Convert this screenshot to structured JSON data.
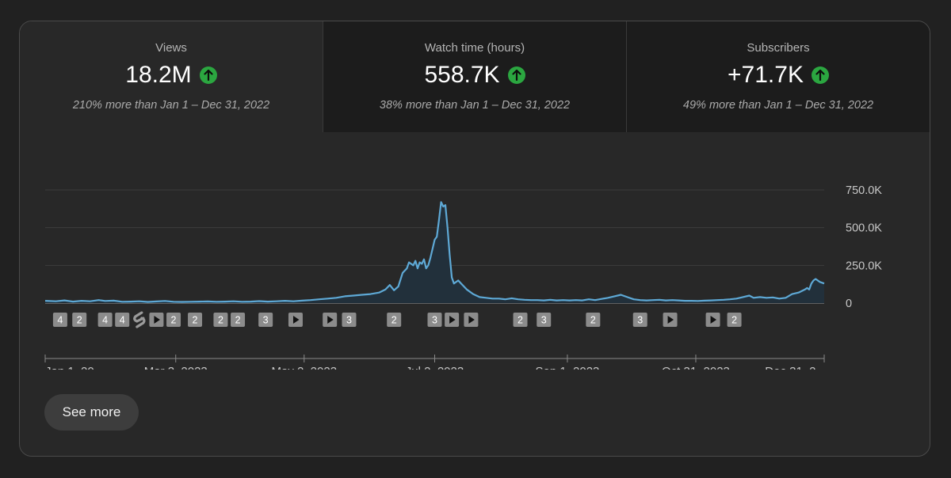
{
  "metrics": [
    {
      "label": "Views",
      "value": "18.2M",
      "compare": "210% more than Jan 1 – Dec 31, 2022"
    },
    {
      "label": "Watch time (hours)",
      "value": "558.7K",
      "compare": "38% more than Jan 1 – Dec 31, 2022"
    },
    {
      "label": "Subscribers",
      "value": "+71.7K",
      "compare": "49% more than Jan 1 – Dec 31, 2022"
    }
  ],
  "colors": {
    "line": "#5ea9d6",
    "area": "#22303b",
    "up": "#2ba640",
    "marker": "#8c8c8c"
  },
  "see_more_label": "See more",
  "chart_data": {
    "type": "area",
    "title": "Views",
    "ylim": [
      0,
      750000
    ],
    "y_ticks": [
      0,
      250000,
      500000,
      750000
    ],
    "y_tick_labels": [
      "0",
      "250.0K",
      "500.0K",
      "750.0K"
    ],
    "x_tick_labels": [
      "Jan 1, 20...",
      "Mar 3, 2023",
      "May 2, 2023",
      "Jul 2, 2023",
      "Sep 1, 2023",
      "Oct 31, 2023",
      "Dec 31, 2..."
    ],
    "x_tick_days": [
      0,
      61,
      121,
      182,
      244,
      304,
      364
    ],
    "x_max_day": 364,
    "series": [
      {
        "name": "Views",
        "points": [
          [
            0,
            15000
          ],
          [
            5,
            12000
          ],
          [
            9,
            18000
          ],
          [
            13,
            10000
          ],
          [
            17,
            15000
          ],
          [
            21,
            12000
          ],
          [
            25,
            20000
          ],
          [
            28,
            14000
          ],
          [
            32,
            16000
          ],
          [
            36,
            9000
          ],
          [
            40,
            10000
          ],
          [
            44,
            12000
          ],
          [
            48,
            8000
          ],
          [
            52,
            11000
          ],
          [
            56,
            14000
          ],
          [
            60,
            9000
          ],
          [
            64,
            8000
          ],
          [
            68,
            9000
          ],
          [
            72,
            10000
          ],
          [
            76,
            11000
          ],
          [
            80,
            9000
          ],
          [
            84,
            10000
          ],
          [
            88,
            12000
          ],
          [
            92,
            9000
          ],
          [
            96,
            10000
          ],
          [
            100,
            13000
          ],
          [
            104,
            10000
          ],
          [
            108,
            12000
          ],
          [
            112,
            15000
          ],
          [
            116,
            12000
          ],
          [
            120,
            16000
          ],
          [
            124,
            20000
          ],
          [
            128,
            25000
          ],
          [
            132,
            30000
          ],
          [
            136,
            35000
          ],
          [
            140,
            45000
          ],
          [
            144,
            50000
          ],
          [
            148,
            55000
          ],
          [
            152,
            60000
          ],
          [
            156,
            70000
          ],
          [
            159,
            90000
          ],
          [
            161,
            120000
          ],
          [
            163,
            85000
          ],
          [
            165,
            110000
          ],
          [
            167,
            200000
          ],
          [
            169,
            230000
          ],
          [
            170,
            270000
          ],
          [
            172,
            250000
          ],
          [
            173,
            280000
          ],
          [
            174,
            230000
          ],
          [
            175,
            270000
          ],
          [
            176,
            260000
          ],
          [
            177,
            290000
          ],
          [
            178,
            230000
          ],
          [
            179,
            250000
          ],
          [
            180,
            300000
          ],
          [
            181,
            360000
          ],
          [
            182,
            420000
          ],
          [
            183,
            440000
          ],
          [
            184,
            550000
          ],
          [
            185,
            670000
          ],
          [
            186,
            640000
          ],
          [
            187,
            650000
          ],
          [
            188,
            500000
          ],
          [
            189,
            320000
          ],
          [
            190,
            170000
          ],
          [
            191,
            130000
          ],
          [
            193,
            150000
          ],
          [
            195,
            120000
          ],
          [
            197,
            90000
          ],
          [
            200,
            60000
          ],
          [
            203,
            40000
          ],
          [
            206,
            35000
          ],
          [
            209,
            30000
          ],
          [
            212,
            30000
          ],
          [
            215,
            25000
          ],
          [
            218,
            32000
          ],
          [
            221,
            25000
          ],
          [
            224,
            22000
          ],
          [
            227,
            20000
          ],
          [
            230,
            20000
          ],
          [
            233,
            18000
          ],
          [
            236,
            22000
          ],
          [
            239,
            18000
          ],
          [
            242,
            20000
          ],
          [
            245,
            18000
          ],
          [
            248,
            20000
          ],
          [
            251,
            18000
          ],
          [
            254,
            25000
          ],
          [
            257,
            20000
          ],
          [
            260,
            28000
          ],
          [
            263,
            35000
          ],
          [
            266,
            45000
          ],
          [
            269,
            55000
          ],
          [
            272,
            40000
          ],
          [
            275,
            25000
          ],
          [
            278,
            20000
          ],
          [
            281,
            18000
          ],
          [
            284,
            20000
          ],
          [
            287,
            22000
          ],
          [
            290,
            18000
          ],
          [
            293,
            20000
          ],
          [
            296,
            18000
          ],
          [
            299,
            15000
          ],
          [
            302,
            15000
          ],
          [
            305,
            14000
          ],
          [
            308,
            16000
          ],
          [
            311,
            18000
          ],
          [
            314,
            20000
          ],
          [
            317,
            22000
          ],
          [
            320,
            25000
          ],
          [
            323,
            30000
          ],
          [
            326,
            40000
          ],
          [
            329,
            50000
          ],
          [
            331,
            35000
          ],
          [
            334,
            40000
          ],
          [
            337,
            35000
          ],
          [
            340,
            38000
          ],
          [
            343,
            30000
          ],
          [
            346,
            35000
          ],
          [
            349,
            60000
          ],
          [
            352,
            70000
          ],
          [
            355,
            90000
          ],
          [
            356,
            100000
          ],
          [
            357,
            90000
          ],
          [
            358,
            130000
          ],
          [
            359,
            150000
          ],
          [
            360,
            160000
          ],
          [
            362,
            140000
          ],
          [
            364,
            130000
          ]
        ]
      }
    ],
    "markers": [
      {
        "day": 7,
        "type": "number",
        "label": "4"
      },
      {
        "day": 16,
        "type": "number",
        "label": "2"
      },
      {
        "day": 28,
        "type": "number",
        "label": "4"
      },
      {
        "day": 36,
        "type": "number",
        "label": "4"
      },
      {
        "day": 44,
        "type": "short"
      },
      {
        "day": 52,
        "type": "play"
      },
      {
        "day": 60,
        "type": "number",
        "label": "2"
      },
      {
        "day": 70,
        "type": "number",
        "label": "2"
      },
      {
        "day": 82,
        "type": "number",
        "label": "2"
      },
      {
        "day": 90,
        "type": "number",
        "label": "2"
      },
      {
        "day": 103,
        "type": "number",
        "label": "3"
      },
      {
        "day": 117,
        "type": "play"
      },
      {
        "day": 133,
        "type": "play"
      },
      {
        "day": 142,
        "type": "number",
        "label": "3"
      },
      {
        "day": 163,
        "type": "number",
        "label": "2"
      },
      {
        "day": 182,
        "type": "number",
        "label": "3"
      },
      {
        "day": 190,
        "type": "play"
      },
      {
        "day": 199,
        "type": "play"
      },
      {
        "day": 222,
        "type": "number",
        "label": "2"
      },
      {
        "day": 233,
        "type": "number",
        "label": "3"
      },
      {
        "day": 256,
        "type": "number",
        "label": "2"
      },
      {
        "day": 278,
        "type": "number",
        "label": "3"
      },
      {
        "day": 292,
        "type": "play"
      },
      {
        "day": 312,
        "type": "play"
      },
      {
        "day": 322,
        "type": "number",
        "label": "2"
      }
    ]
  }
}
